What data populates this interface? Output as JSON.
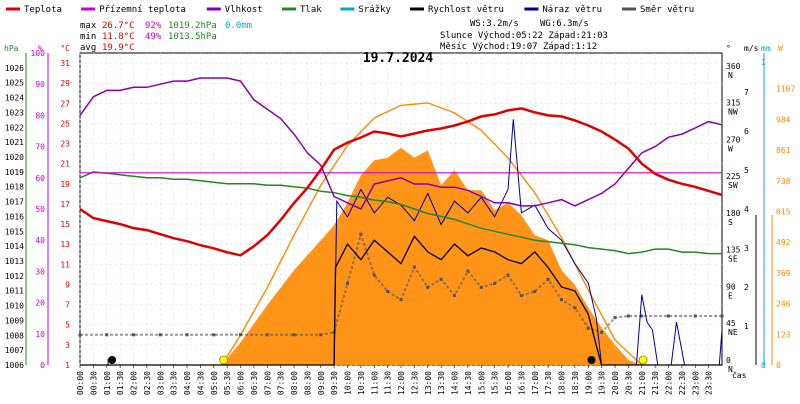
{
  "legend": [
    {
      "label": "Teplota",
      "color": "#dd0000"
    },
    {
      "label": "Přízemní teplota",
      "color": "#cc00cc"
    },
    {
      "label": "Vlhkost",
      "color": "#8800aa"
    },
    {
      "label": "Tlak",
      "color": "#228822"
    },
    {
      "label": "Srážky",
      "color": "#00aacc"
    },
    {
      "label": "Rychlost větru",
      "color": "#000000"
    },
    {
      "label": "Náraz větru",
      "color": "#000099"
    },
    {
      "label": "Směr větru",
      "color": "#555555"
    }
  ],
  "stats": {
    "max_label": "max",
    "max_temp": "26.7°C",
    "max_hum": "92%",
    "max_press": "1019.2hPa",
    "max_rain": "0.0mm",
    "min_label": "min",
    "min_temp": "11.8°C",
    "min_hum": "49%",
    "min_press": "1013.5hPa",
    "avg_label": "avg",
    "avg_temp": "19.9°C",
    "ws": "WS:3.2m/s",
    "wg": "WG:6.3m/s",
    "sun": "Slunce Východ:05:22  Západ:21:03",
    "moon": "Měsíc  Východ:19:07  Západ:1:12"
  },
  "chart_data": {
    "type": "line",
    "title": "19.7.2024",
    "xlabel": "čas",
    "x_ticks": [
      "00:00",
      "00:30",
      "01:00",
      "01:30",
      "02:00",
      "02:30",
      "03:00",
      "03:30",
      "04:00",
      "04:30",
      "05:00",
      "05:30",
      "06:00",
      "06:30",
      "07:00",
      "07:30",
      "08:00",
      "08:30",
      "09:00",
      "09:30",
      "10:00",
      "10:30",
      "11:00",
      "11:30",
      "12:00",
      "12:30",
      "13:00",
      "13:30",
      "14:00",
      "14:30",
      "15:00",
      "15:30",
      "16:00",
      "16:30",
      "17:00",
      "17:30",
      "18:00",
      "18:30",
      "19:00",
      "19:30",
      "20:00",
      "20:30",
      "21:00",
      "21:30",
      "22:00",
      "22:30",
      "23:00",
      "23:30"
    ],
    "axes": {
      "pressure": {
        "label": "hPa",
        "color": "#228822",
        "range": [
          1006,
          1027
        ],
        "ticks": [
          1006,
          1007,
          1008,
          1009,
          1010,
          1011,
          1012,
          1013,
          1014,
          1015,
          1016,
          1017,
          1018,
          1019,
          1020,
          1021,
          1022,
          1023,
          1024,
          1025,
          1026
        ]
      },
      "humidity": {
        "label": "%",
        "color": "#cc00cc",
        "range": [
          0,
          100
        ],
        "ticks": [
          0,
          10,
          20,
          30,
          40,
          50,
          60,
          70,
          80,
          90,
          100
        ]
      },
      "temperature": {
        "label": "°C",
        "color": "#dd0000",
        "range": [
          1,
          32
        ],
        "ticks": [
          1,
          3,
          5,
          7,
          9,
          11,
          13,
          15,
          17,
          19,
          21,
          23,
          25,
          27,
          29,
          31
        ]
      },
      "direction": {
        "label": "°",
        "range": [
          0,
          382
        ],
        "ticks": [
          {
            "v": 0,
            "l": "0",
            "d": "N"
          },
          {
            "v": 45,
            "l": "45",
            "d": "NE"
          },
          {
            "v": 90,
            "l": "90",
            "d": "E"
          },
          {
            "v": 135,
            "l": "135",
            "d": "SE"
          },
          {
            "v": 180,
            "l": "180",
            "d": "S"
          },
          {
            "v": 225,
            "l": "225",
            "d": "SW"
          },
          {
            "v": 270,
            "l": "270",
            "d": "W"
          },
          {
            "v": 315,
            "l": "315",
            "d": "NW"
          },
          {
            "v": 360,
            "l": "360",
            "d": "N"
          }
        ]
      },
      "wind": {
        "label": "m/s",
        "range": [
          0,
          8
        ],
        "ticks": [
          1,
          2,
          3,
          4,
          5,
          6,
          7
        ]
      },
      "rain": {
        "label": "mm",
        "color": "#00aacc",
        "ticks": [
          0,
          1
        ]
      },
      "solar": {
        "label": "W",
        "color": "#ff8800",
        "range": [
          0,
          1250
        ],
        "ticks": [
          0,
          123,
          246,
          369,
          492,
          615,
          738,
          861,
          984,
          1107
        ]
      }
    },
    "series": [
      {
        "name": "Teplota",
        "axis": "temperature",
        "color": "#dd0000",
        "x": [
          0,
          0.5,
          1,
          1.5,
          2,
          2.5,
          3,
          3.5,
          4,
          4.5,
          5,
          5.5,
          6,
          6.5,
          7,
          7.5,
          8,
          8.5,
          9,
          9.5,
          10,
          10.5,
          11,
          11.5,
          12,
          12.5,
          13,
          13.5,
          14,
          14.5,
          15,
          15.5,
          16,
          16.5,
          17,
          17.5,
          18,
          18.5,
          19,
          19.5,
          20,
          20.5,
          21,
          21.5,
          22,
          22.5,
          23,
          23.5,
          24
        ],
        "values": [
          16.5,
          15.6,
          15.3,
          15.0,
          14.6,
          14.4,
          14.0,
          13.6,
          13.3,
          12.9,
          12.6,
          12.2,
          11.9,
          12.8,
          13.9,
          15.4,
          17.1,
          18.6,
          20.4,
          22.4,
          23.1,
          23.6,
          24.2,
          24.0,
          23.7,
          24.0,
          24.3,
          24.5,
          24.8,
          25.2,
          25.7,
          25.9,
          26.3,
          26.5,
          26.1,
          25.8,
          25.7,
          25.3,
          24.8,
          24.2,
          23.4,
          22.5,
          21.0,
          20.0,
          19.4,
          19.0,
          18.7,
          18.3,
          17.9
        ]
      },
      {
        "name": "Přízemní teplota",
        "axis": "temperature",
        "color": "#cc00cc",
        "x": [
          0,
          24
        ],
        "values": [
          20.1,
          20.1
        ]
      },
      {
        "name": "Vlhkost",
        "axis": "humidity",
        "color": "#8800aa",
        "x": [
          0,
          0.5,
          1,
          1.5,
          2,
          2.5,
          3,
          3.5,
          4,
          4.5,
          5,
          5.5,
          6,
          6.5,
          7,
          7.5,
          8,
          8.5,
          9,
          9.5,
          10,
          10.5,
          11,
          11.5,
          12,
          12.5,
          13,
          13.5,
          14,
          14.5,
          15,
          15.5,
          16,
          16.5,
          17,
          17.5,
          18,
          18.5,
          19,
          19.5,
          20,
          20.5,
          21,
          21.5,
          22,
          22.5,
          23,
          23.5,
          24
        ],
        "values": [
          80,
          86,
          88,
          88,
          89,
          89,
          90,
          91,
          91,
          92,
          92,
          92,
          91,
          85,
          82,
          79,
          74,
          68,
          64,
          54,
          52,
          50,
          58,
          59,
          60,
          58,
          58,
          57,
          57,
          56,
          54,
          52,
          52,
          51,
          51,
          52,
          53,
          51,
          53,
          55,
          58,
          63,
          68,
          70,
          73,
          74,
          76,
          78,
          77
        ]
      },
      {
        "name": "Tlak",
        "axis": "pressure",
        "color": "#228822",
        "x": [
          0,
          0.5,
          1,
          1.5,
          2,
          2.5,
          3,
          3.5,
          4,
          4.5,
          5,
          5.5,
          6,
          6.5,
          7,
          7.5,
          8,
          8.5,
          9,
          9.5,
          10,
          10.5,
          11,
          11.5,
          12,
          12.5,
          13,
          13.5,
          14,
          14.5,
          15,
          15.5,
          16,
          16.5,
          17,
          17.5,
          18,
          18.5,
          19,
          19.5,
          20,
          20.5,
          21,
          21.5,
          22,
          22.5,
          23,
          23.5,
          24
        ],
        "values": [
          1018.6,
          1019.0,
          1018.9,
          1018.8,
          1018.7,
          1018.6,
          1018.6,
          1018.5,
          1018.5,
          1018.4,
          1018.3,
          1018.2,
          1018.2,
          1018.2,
          1018.1,
          1018.1,
          1018.0,
          1017.9,
          1017.7,
          1017.6,
          1017.4,
          1017.3,
          1017.1,
          1017.0,
          1016.8,
          1016.5,
          1016.2,
          1016.0,
          1015.8,
          1015.5,
          1015.2,
          1015.0,
          1014.8,
          1014.6,
          1014.4,
          1014.3,
          1014.2,
          1014.1,
          1013.9,
          1013.8,
          1013.7,
          1013.5,
          1013.6,
          1013.8,
          1013.8,
          1013.6,
          1013.6,
          1013.5,
          1013.5
        ]
      },
      {
        "name": "Rychlost větru",
        "axis": "wind",
        "color": "#000000",
        "x": [
          0,
          9.5,
          9.55,
          10,
          10.5,
          11,
          11.5,
          12,
          12.5,
          13,
          13.5,
          14,
          14.5,
          15,
          15.5,
          16,
          16.5,
          17,
          17.5,
          18,
          18.5,
          19,
          19.3,
          19.5,
          24
        ],
        "values": [
          0,
          0,
          2.5,
          3.1,
          2.7,
          3.2,
          2.9,
          2.6,
          3.3,
          2.9,
          2.7,
          3.1,
          2.8,
          3.0,
          2.9,
          2.7,
          2.6,
          2.9,
          2.5,
          2.0,
          1.9,
          1.3,
          0.5,
          0,
          0
        ]
      },
      {
        "name": "Náraz větru",
        "axis": "wind",
        "color": "#000099",
        "x": [
          0,
          9.5,
          9.6,
          10,
          10.5,
          11,
          11.5,
          12,
          12.5,
          13,
          13.5,
          14,
          14.5,
          15,
          15.5,
          16,
          16.2,
          16.5,
          17,
          17.5,
          18,
          18.5,
          19,
          19.3,
          19.5,
          20.8,
          21,
          21.2,
          21.4,
          21.6,
          22.1,
          22.3,
          22.6,
          23.9,
          24
        ],
        "values": [
          0,
          0,
          4.2,
          3.8,
          4.5,
          3.9,
          4.3,
          4.1,
          3.7,
          4.4,
          3.6,
          4.2,
          3.9,
          4.3,
          3.8,
          4.5,
          6.3,
          3.9,
          4.1,
          3.5,
          3.2,
          2.6,
          2.1,
          1.2,
          0,
          0,
          1.8,
          1.1,
          0.9,
          0,
          0,
          1.1,
          0,
          0,
          0.9
        ]
      },
      {
        "name": "Směr větru",
        "axis": "direction",
        "color": "#555555",
        "x": [
          0,
          1,
          2,
          3,
          4,
          5,
          6,
          7,
          8,
          9,
          9.5,
          10,
          10.5,
          11,
          11.5,
          12,
          12.5,
          13,
          13.5,
          14,
          14.5,
          15,
          15.5,
          16,
          16.5,
          17,
          17.5,
          18,
          18.5,
          19,
          19.5,
          20,
          20.5,
          21,
          22,
          23,
          24
        ],
        "values": [
          37,
          37,
          37,
          37,
          37,
          37,
          37,
          37,
          37,
          37,
          40,
          100,
          160,
          110,
          90,
          80,
          120,
          95,
          105,
          85,
          115,
          95,
          100,
          110,
          85,
          90,
          105,
          80,
          70,
          45,
          40,
          58,
          60,
          60,
          60,
          60,
          60
        ]
      },
      {
        "name": "Solar",
        "axis": "solar",
        "color": "#ff8800",
        "x": [
          5.3,
          6,
          7,
          8,
          9,
          9.5,
          10,
          10.5,
          11,
          11.5,
          12,
          12.5,
          13,
          13.5,
          14,
          14.5,
          15,
          15.5,
          16,
          16.5,
          17,
          17.5,
          18,
          18.5,
          19,
          19.5,
          20,
          20.5,
          21
        ],
        "values": [
          0,
          90,
          240,
          380,
          500,
          560,
          650,
          760,
          820,
          830,
          870,
          830,
          860,
          720,
          780,
          700,
          700,
          620,
          650,
          600,
          520,
          500,
          380,
          320,
          230,
          150,
          80,
          20,
          0
        ]
      },
      {
        "name": "Solar max",
        "axis": "solar",
        "color": "#ff8800",
        "x": [
          5.3,
          6,
          7,
          8,
          9,
          10,
          11,
          12,
          13,
          14,
          15,
          16,
          17,
          18,
          19,
          20,
          21
        ],
        "values": [
          0,
          120,
          310,
          520,
          720,
          880,
          990,
          1040,
          1050,
          1010,
          940,
          830,
          690,
          510,
          300,
          100,
          0
        ]
      }
    ],
    "events": {
      "moon_set_time": 1.2,
      "moon_rise_time": 19.12,
      "sun_rise_time": 5.37,
      "sun_set_time": 21.05
    }
  }
}
